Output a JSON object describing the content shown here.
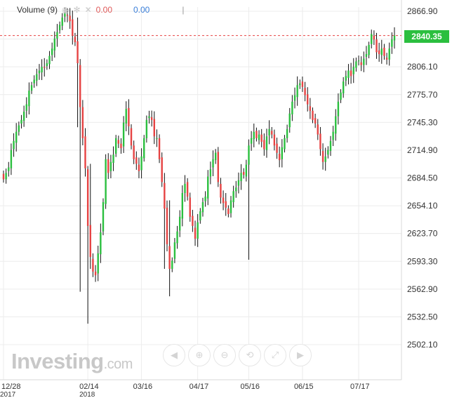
{
  "legend": {
    "title": "Volume (9)",
    "value1": "0.00",
    "value2": "0.00",
    "separator": "|"
  },
  "watermark": {
    "brand": "Investing",
    "suffix": ".com"
  },
  "toolbar": [
    {
      "name": "scroll-left-button",
      "glyph": "◀"
    },
    {
      "name": "zoom-in-button",
      "glyph": "⊕"
    },
    {
      "name": "zoom-out-button",
      "glyph": "⊖"
    },
    {
      "name": "reset-zoom-button",
      "glyph": "⟲"
    },
    {
      "name": "fit-button",
      "glyph": "⤢"
    },
    {
      "name": "scroll-right-button",
      "glyph": "▶"
    }
  ],
  "last_price": {
    "label": "2840.35",
    "value": 2840.35,
    "color": "#2bbf3f"
  },
  "colors": {
    "up": "#2bbf3f",
    "down": "#e64343",
    "grid": "#ececec",
    "axis_text": "#333333"
  },
  "chart_data": {
    "type": "candlestick",
    "y_ticks": [
      "2866.90",
      "2836.50",
      "2806.10",
      "2775.70",
      "2745.30",
      "2714.90",
      "2684.50",
      "2654.10",
      "2623.70",
      "2593.30",
      "2562.90",
      "2532.50",
      "2502.10"
    ],
    "ylim": [
      2502.1,
      2866.9
    ],
    "x_ticks": [
      {
        "label": "12/28",
        "sub": "2017",
        "idx": 0
      },
      {
        "label": "02/14",
        "sub": "2018",
        "idx": 33
      },
      {
        "label": "03/16",
        "sub": "",
        "idx": 54
      },
      {
        "label": "04/17",
        "sub": "",
        "idx": 76
      },
      {
        "label": "05/16",
        "sub": "",
        "idx": 96
      },
      {
        "label": "06/15",
        "sub": "",
        "idx": 117
      },
      {
        "label": "07/17",
        "sub": "",
        "idx": 139
      }
    ],
    "n_slots": 154,
    "close_series": [
      2683,
      2690,
      2696,
      2715,
      2725,
      2735,
      2742,
      2748,
      2757,
      2765,
      2780,
      2786,
      2792,
      2798,
      2802,
      2806,
      2805,
      2810,
      2818,
      2826,
      2837,
      2844,
      2852,
      2860,
      2865,
      2862,
      2856,
      2840,
      2833,
      2810,
      2762,
      2728,
      2695,
      2632,
      2598,
      2582,
      2578,
      2602,
      2625,
      2658,
      2705,
      2690,
      2702,
      2710,
      2728,
      2722,
      2717,
      2745,
      2760,
      2741,
      2720,
      2705,
      2700,
      2692,
      2708,
      2728,
      2748,
      2752,
      2748,
      2730,
      2728,
      2705,
      2680,
      2651,
      2612,
      2585,
      2594,
      2614,
      2626,
      2642,
      2668,
      2678,
      2664,
      2642,
      2632,
      2618,
      2636,
      2648,
      2658,
      2664,
      2686,
      2694,
      2705,
      2712,
      2680,
      2663,
      2657,
      2652,
      2645,
      2660,
      2670,
      2674,
      2682,
      2690,
      2688,
      2699,
      2720,
      2728,
      2735,
      2728,
      2732,
      2724,
      2716,
      2730,
      2738,
      2732,
      2720,
      2712,
      2704,
      2718,
      2728,
      2738,
      2755,
      2768,
      2775,
      2786,
      2788,
      2784,
      2775,
      2765,
      2758,
      2748,
      2744,
      2732,
      2716,
      2702,
      2708,
      2715,
      2725,
      2735,
      2752,
      2768,
      2778,
      2790,
      2796,
      2802,
      2796,
      2806,
      2812,
      2813,
      2808,
      2815,
      2820,
      2830,
      2842,
      2836,
      2822,
      2820,
      2826,
      2818,
      2814,
      2826,
      2836,
      2840.35
    ]
  }
}
